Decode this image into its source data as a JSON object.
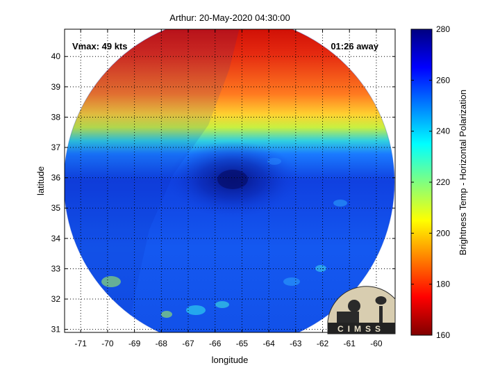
{
  "chart_data": {
    "type": "heatmap",
    "title": "Arthur: 20-May-2020 04:30:00",
    "xlabel": "longitude",
    "ylabel": "latitude",
    "xlim": [
      -71.6,
      -59.3
    ],
    "ylim": [
      30.9,
      40.9
    ],
    "xticks": [
      -71,
      -70,
      -69,
      -68,
      -67,
      -66,
      -65,
      -64,
      -63,
      -62,
      -61,
      -60
    ],
    "yticks": [
      31,
      32,
      33,
      34,
      35,
      36,
      37,
      38,
      39,
      40
    ],
    "grid": true,
    "vmax_text": "Vmax: 49 kts",
    "time_away_text": "01:26 away",
    "storm_center": {
      "lon": -65.5,
      "lat": 36.0
    },
    "colorbar": {
      "label": "Brightness Temp - Horizontal Polarization",
      "range": [
        160,
        280
      ],
      "ticks": [
        160,
        180,
        200,
        220,
        240,
        260,
        280
      ]
    },
    "field_regions": [
      {
        "name": "cold northern band",
        "lat_min": 38.2,
        "lat_max": 40.9,
        "value_k": 180
      },
      {
        "name": "transition band",
        "lat_min": 37.3,
        "lat_max": 38.2,
        "value_k": 215
      },
      {
        "name": "warm ocean",
        "lat_min": 30.9,
        "lat_max": 37.3,
        "value_k": 255
      },
      {
        "name": "storm core",
        "lat_min": 35.6,
        "lat_max": 36.4,
        "value_k": 270
      }
    ],
    "logo_text": "CIMSS",
    "colors": {
      "cold": "#b00000",
      "mid": "#ffff00",
      "warm": "#0020c0"
    }
  }
}
